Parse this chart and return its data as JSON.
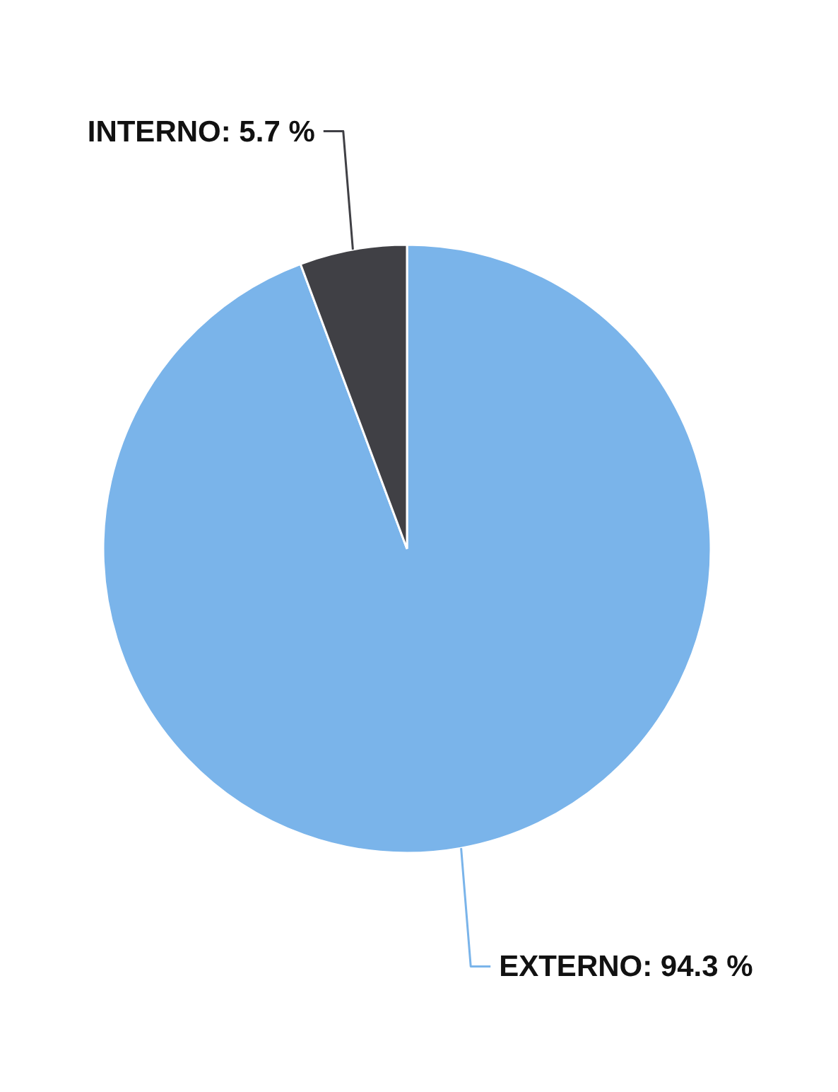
{
  "chart_data": {
    "type": "pie",
    "categories": [
      "EXTERNO",
      "INTERNO"
    ],
    "values": [
      94.3,
      5.7
    ],
    "colors": [
      "#7ab4ea",
      "#404045"
    ],
    "value_labels": [
      "94.3 %",
      "5.7 %"
    ],
    "legend": false
  }
}
